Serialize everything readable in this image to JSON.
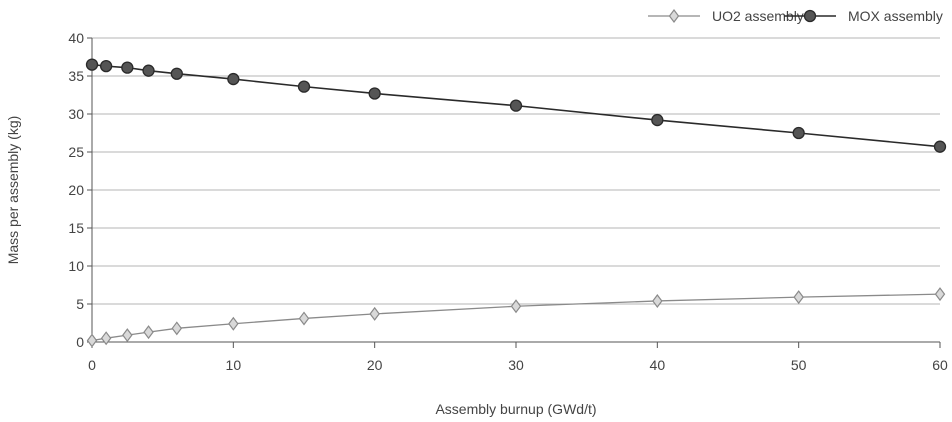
{
  "chart_data": {
    "type": "line",
    "xlabel": "Assembly burnup (GWd/t)",
    "ylabel": "Mass per assembly (kg)",
    "xlim": [
      0,
      60
    ],
    "ylim": [
      0,
      40
    ],
    "x_ticks": [
      0,
      10,
      20,
      30,
      40,
      50,
      60
    ],
    "y_ticks": [
      0,
      5,
      10,
      15,
      20,
      25,
      30,
      35,
      40
    ],
    "grid": "horizontal",
    "legend_position": "top-right",
    "series": [
      {
        "name": "UO2 assembly",
        "marker": "diamond",
        "color": "#8a8a8a",
        "x": [
          0,
          1,
          2.5,
          4,
          6,
          10,
          15,
          20,
          30,
          40,
          50,
          60
        ],
        "y": [
          0.2,
          0.5,
          0.9,
          1.3,
          1.8,
          2.4,
          3.1,
          3.7,
          4.7,
          5.4,
          5.9,
          6.3
        ]
      },
      {
        "name": "MOX assembly",
        "marker": "circle",
        "color": "#2a2a2a",
        "x": [
          0,
          1,
          2.5,
          4,
          6,
          10,
          15,
          20,
          30,
          40,
          50,
          60
        ],
        "y": [
          36.5,
          36.3,
          36.1,
          35.7,
          35.3,
          34.6,
          33.6,
          32.7,
          31.1,
          29.2,
          27.5,
          25.7
        ]
      }
    ]
  }
}
